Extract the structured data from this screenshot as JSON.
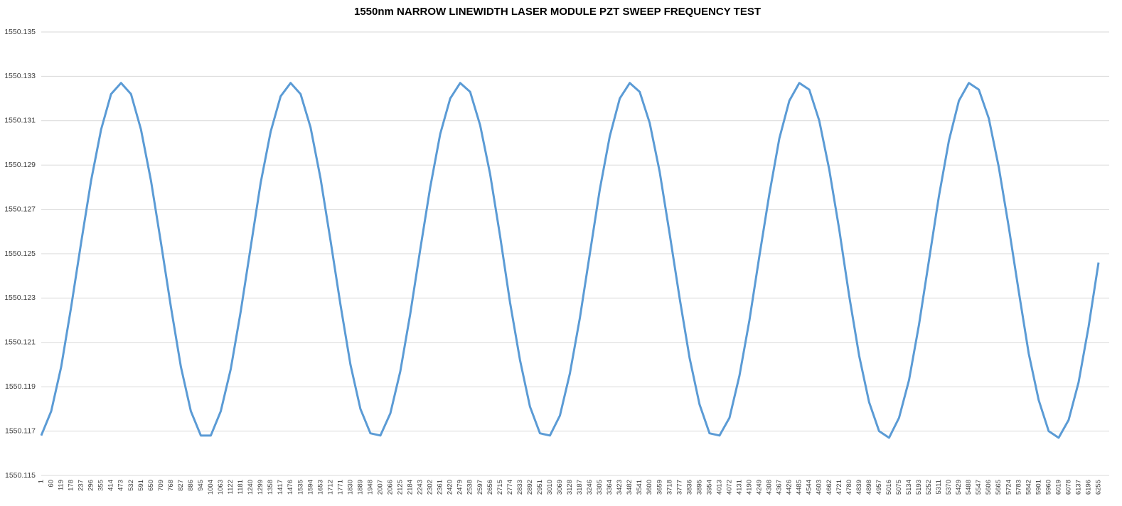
{
  "chart_data": {
    "type": "line",
    "title": "1550nm NARROW LINEWIDTH LASER MODULE PZT SWEEP FREQUENCY TEST",
    "categories": [
      "1",
      "60",
      "119",
      "178",
      "237",
      "296",
      "355",
      "414",
      "473",
      "532",
      "591",
      "650",
      "709",
      "768",
      "827",
      "886",
      "945",
      "1004",
      "1063",
      "1122",
      "1181",
      "1240",
      "1299",
      "1358",
      "1417",
      "1476",
      "1535",
      "1594",
      "1653",
      "1712",
      "1771",
      "1830",
      "1889",
      "1948",
      "2007",
      "2066",
      "2125",
      "2184",
      "2243",
      "2302",
      "2361",
      "2420",
      "2479",
      "2538",
      "2597",
      "2656",
      "2715",
      "2774",
      "2833",
      "2892",
      "2951",
      "3010",
      "3069",
      "3128",
      "3187",
      "3246",
      "3305",
      "3364",
      "3423",
      "3482",
      "3541",
      "3600",
      "3659",
      "3718",
      "3777",
      "3836",
      "3895",
      "3954",
      "4013",
      "4072",
      "4131",
      "4190",
      "4249",
      "4308",
      "4367",
      "4426",
      "4485",
      "4544",
      "4603",
      "4662",
      "4721",
      "4780",
      "4839",
      "4898",
      "4957",
      "5016",
      "5075",
      "5134",
      "5193",
      "5252",
      "5311",
      "5370",
      "5429",
      "5488",
      "5547",
      "5606",
      "5665",
      "5724",
      "5783",
      "5842",
      "5901",
      "5960",
      "6019",
      "6078",
      "6137",
      "6196",
      "6255"
    ],
    "values": [
      1550.1168,
      1550.1179,
      1550.1199,
      1550.1226,
      1550.1255,
      1550.1283,
      1550.1306,
      1550.1322,
      1550.1327,
      1550.1322,
      1550.1306,
      1550.1283,
      1550.1255,
      1550.1226,
      1550.1199,
      1550.1179,
      1550.1168,
      1550.1168,
      1550.1179,
      1550.1198,
      1550.1224,
      1550.1253,
      1550.1282,
      1550.1305,
      1550.1321,
      1550.1327,
      1550.1322,
      1550.1307,
      1550.1284,
      1550.1256,
      1550.1227,
      1550.12,
      1550.118,
      1550.1169,
      1550.1168,
      1550.1178,
      1550.1197,
      1550.1223,
      1550.1252,
      1550.128,
      1550.1304,
      1550.132,
      1550.1327,
      1550.1323,
      1550.1308,
      1550.1286,
      1550.1258,
      1550.1228,
      1550.1202,
      1550.1181,
      1550.1169,
      1550.1168,
      1550.1177,
      1550.1196,
      1550.1221,
      1550.125,
      1550.1279,
      1550.1303,
      1550.132,
      1550.1327,
      1550.1323,
      1550.1309,
      1550.1287,
      1550.1259,
      1550.123,
      1550.1203,
      1550.1182,
      1550.1169,
      1550.1168,
      1550.1176,
      1550.1195,
      1550.122,
      1550.1249,
      1550.1277,
      1550.1302,
      1550.1319,
      1550.1327,
      1550.1324,
      1550.131,
      1550.1288,
      1550.1261,
      1550.1231,
      1550.1204,
      1550.1183,
      1550.117,
      1550.1167,
      1550.1176,
      1550.1193,
      1550.1218,
      1550.1247,
      1550.1276,
      1550.1301,
      1550.1319,
      1550.1327,
      1550.1324,
      1550.1311,
      1550.1289,
      1550.1262,
      1550.1233,
      1550.1205,
      1550.1184,
      1550.117,
      1550.1167,
      1550.1175,
      1550.1192,
      1550.1217,
      1550.1246
    ],
    "color": "#5b9bd5",
    "ylim": [
      1550.115,
      1550.135
    ],
    "yticks": [
      1550.115,
      1550.117,
      1550.119,
      1550.121,
      1550.123,
      1550.125,
      1550.127,
      1550.129,
      1550.131,
      1550.133,
      1550.135
    ],
    "grid": true
  }
}
